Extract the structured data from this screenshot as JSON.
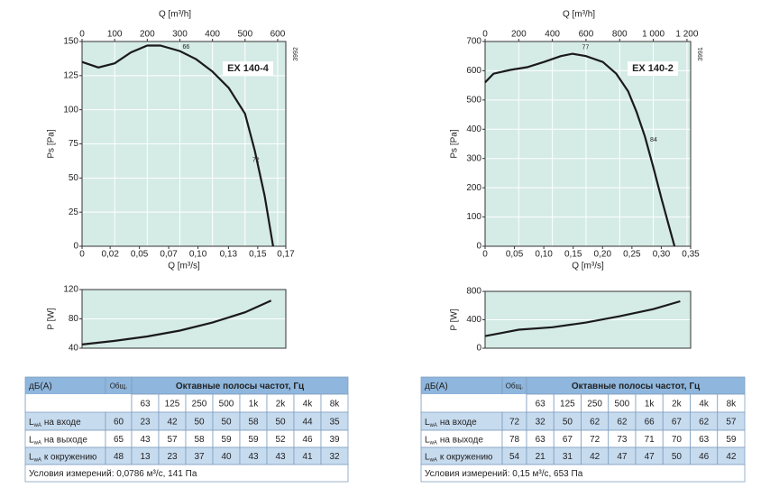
{
  "chart_data": [
    {
      "type": "line",
      "model": "EX 140-4",
      "code": "3992",
      "xlabel": "Q [m³/h]",
      "x2label": "Q [m³/s]",
      "ylabel": "Ps [Pa]",
      "xlim": [
        0,
        625
      ],
      "xticks": [
        0,
        100,
        200,
        300,
        400,
        500,
        600
      ],
      "x2lim": [
        0,
        0.174
      ],
      "x2ticks": [
        0,
        {
          "value": 0.024,
          "label": "0,02"
        },
        {
          "value": 0.049,
          "label": "0,05"
        },
        {
          "value": 0.074,
          "label": "0,07"
        },
        {
          "value": 0.099,
          "label": "0,10"
        },
        {
          "value": 0.125,
          "label": "0,13"
        },
        {
          "value": 0.15,
          "label": "0,15"
        },
        {
          "value": 0.174,
          "label": "0,17"
        }
      ],
      "ylim": [
        0,
        150
      ],
      "yticks": [
        0,
        25,
        50,
        75,
        100,
        125,
        150
      ],
      "grid": true,
      "series": [
        {
          "color": "#1a1a1a",
          "x": [
            0,
            50,
            100,
            150,
            200,
            240,
            300,
            350,
            400,
            450,
            500,
            530,
            560,
            586
          ],
          "values": [
            135,
            131,
            134,
            142,
            147,
            147,
            143,
            137,
            128,
            116,
            97,
            70,
            37,
            0
          ]
        }
      ],
      "annotations": [
        {
          "text": "66",
          "x": 300,
          "y": 146
        },
        {
          "text": "72",
          "x": 514,
          "y": 63
        }
      ]
    },
    {
      "type": "line",
      "ylabel": "P [W]",
      "xlim": [
        0,
        625
      ],
      "ylim": [
        40,
        120
      ],
      "yticks": [
        40,
        80,
        120
      ],
      "grid": true,
      "series": [
        {
          "color": "#1a1a1a",
          "x": [
            0,
            100,
            200,
            300,
            400,
            500,
            580
          ],
          "values": [
            45,
            50,
            56,
            64,
            75,
            89,
            105
          ]
        }
      ]
    },
    {
      "type": "line",
      "model": "EX 140-2",
      "code": "3991",
      "xlabel": "Q [m³/h]",
      "x2label": "Q [m³/s]",
      "ylabel": "Ps [Pa]",
      "xlim": [
        0,
        1222
      ],
      "xticks": [
        0,
        200,
        400,
        600,
        800,
        {
          "value": 1000,
          "label": "1 000"
        },
        {
          "value": 1200,
          "label": "1 200"
        }
      ],
      "x2lim": [
        0,
        0.35
      ],
      "x2ticks": [
        0,
        {
          "value": 0.05,
          "label": "0,05"
        },
        {
          "value": 0.1,
          "label": "0,10"
        },
        {
          "value": 0.15,
          "label": "0,15"
        },
        {
          "value": 0.2,
          "label": "0,20"
        },
        {
          "value": 0.25,
          "label": "0,25"
        },
        {
          "value": 0.3,
          "label": "0,30"
        },
        {
          "value": 0.35,
          "label": "0,35"
        }
      ],
      "ylim": [
        0,
        700
      ],
      "yticks": [
        0,
        100,
        200,
        300,
        400,
        500,
        600,
        700
      ],
      "grid": true,
      "series": [
        {
          "color": "#1a1a1a",
          "x": [
            0,
            50,
            150,
            250,
            350,
            450,
            520,
            600,
            700,
            780,
            850,
            900,
            950,
            1000,
            1050,
            1100,
            1126
          ],
          "values": [
            560,
            590,
            603,
            612,
            630,
            650,
            658,
            650,
            630,
            590,
            530,
            460,
            375,
            270,
            160,
            55,
            0
          ]
        }
      ],
      "annotations": [
        {
          "text": "77",
          "x": 560,
          "y": 680
        },
        {
          "text": "84",
          "x": 965,
          "y": 364
        }
      ]
    },
    {
      "type": "line",
      "ylabel": "P [W]",
      "xlim": [
        0,
        1222
      ],
      "ylim": [
        0,
        800
      ],
      "yticks": [
        0,
        400,
        800
      ],
      "grid": true,
      "series": [
        {
          "color": "#1a1a1a",
          "x": [
            0,
            100,
            200,
            400,
            600,
            800,
            1000,
            1160
          ],
          "values": [
            170,
            215,
            260,
            295,
            360,
            450,
            550,
            660
          ]
        }
      ]
    }
  ],
  "tables": [
    {
      "header": [
        "дБ(А)",
        "Общ.",
        "Октавные полосы частот, Гц"
      ],
      "bands": [
        63,
        125,
        250,
        500,
        "1k",
        "2k",
        "4k",
        "8k"
      ],
      "symbol": "L",
      "subscript": "wA",
      "rows": [
        {
          "label": "на входе",
          "total": 60,
          "values": [
            23,
            42,
            50,
            50,
            58,
            50,
            44,
            35
          ]
        },
        {
          "label": "на выходе",
          "total": 65,
          "values": [
            43,
            57,
            58,
            59,
            59,
            52,
            46,
            39
          ]
        },
        {
          "label": "к окружению",
          "total": 48,
          "values": [
            13,
            23,
            37,
            40,
            43,
            43,
            41,
            32
          ]
        }
      ],
      "footer": "Условия измерений: 0,0786 м³/с, 141 Па"
    },
    {
      "header": [
        "дБ(А)",
        "Общ.",
        "Октавные полосы частот, Гц"
      ],
      "bands": [
        63,
        125,
        250,
        500,
        "1k",
        "2k",
        "4k",
        "8k"
      ],
      "symbol": "L",
      "subscript": "wA",
      "rows": [
        {
          "label": "на входе",
          "total": 72,
          "values": [
            32,
            50,
            62,
            62,
            66,
            67,
            62,
            57
          ]
        },
        {
          "label": "на выходе",
          "total": 78,
          "values": [
            63,
            67,
            72,
            73,
            71,
            70,
            63,
            59
          ]
        },
        {
          "label": "к окружению",
          "total": 54,
          "values": [
            21,
            31,
            42,
            47,
            47,
            50,
            46,
            42
          ]
        }
      ],
      "footer": "Условия измерений: 0,15 м³/с, 653 Па"
    }
  ]
}
